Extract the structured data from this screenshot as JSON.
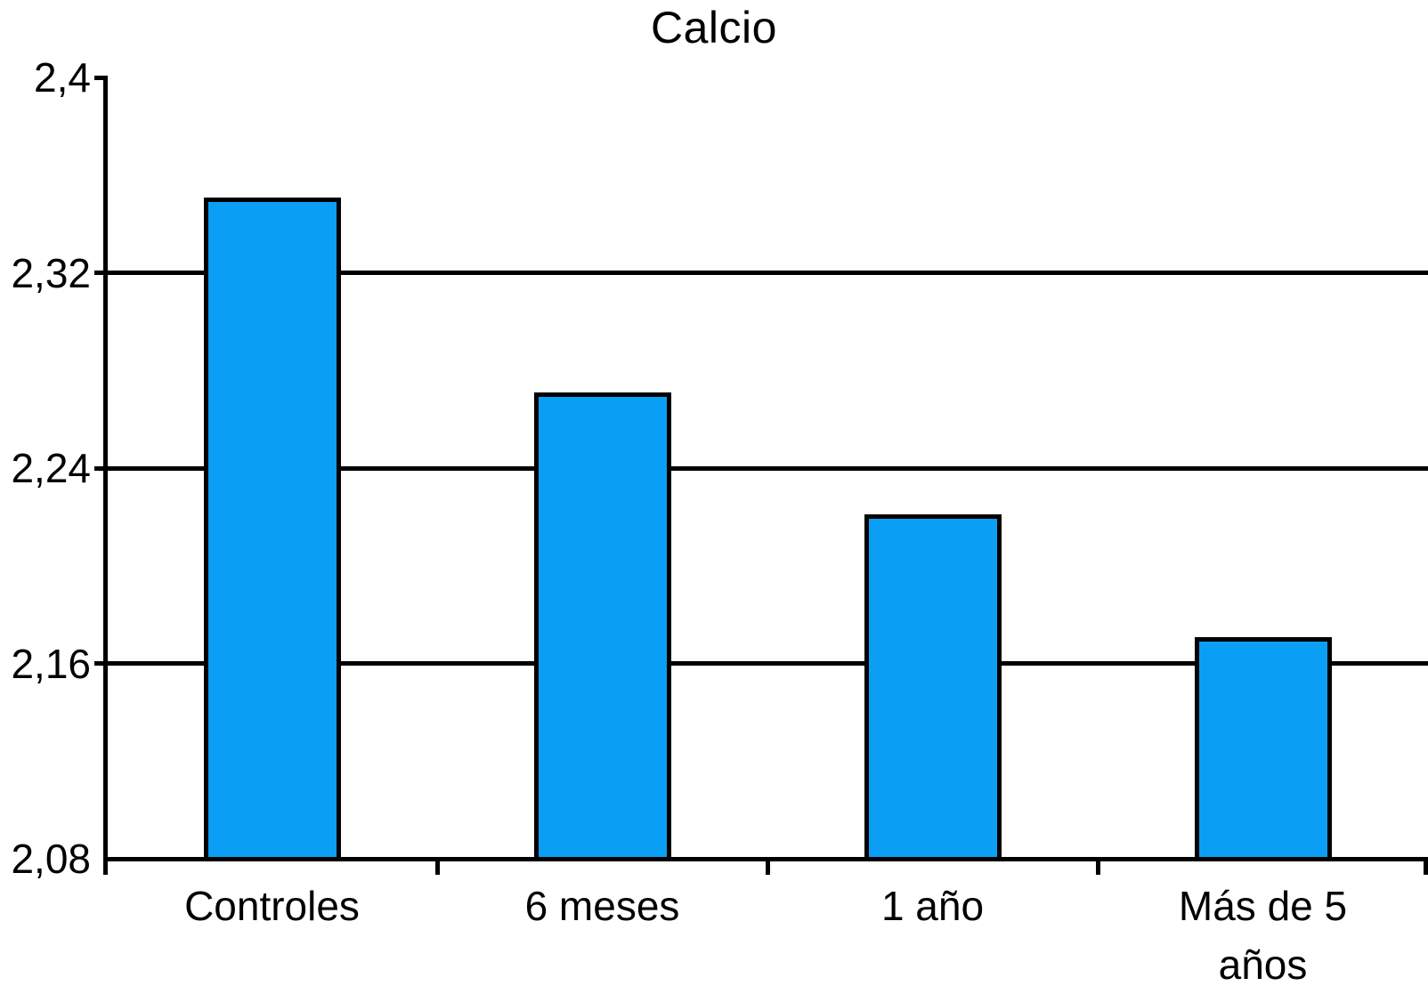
{
  "chart_data": {
    "type": "bar",
    "title": "Calcio",
    "xlabel": "",
    "ylabel": "",
    "categories": [
      "Controles",
      "6 meses",
      "1 año",
      "Más de 5 años"
    ],
    "category_label_lines": [
      [
        "Controles"
      ],
      [
        "6 meses"
      ],
      [
        "1 año"
      ],
      [
        "Más de 5",
        "años"
      ]
    ],
    "values": [
      2.35,
      2.27,
      2.22,
      2.17
    ],
    "ylim": [
      2.08,
      2.4
    ],
    "ytick_step": 0.08,
    "yticks": [
      {
        "value": 2.4,
        "label": "2,4"
      },
      {
        "value": 2.32,
        "label": "2,32"
      },
      {
        "value": 2.24,
        "label": "2,24"
      },
      {
        "value": 2.16,
        "label": "2,16"
      },
      {
        "value": 2.08,
        "label": "2,08"
      }
    ],
    "decimal_separator": ",",
    "grid": "horizontal",
    "legend": "none",
    "colors": {
      "bar_fill": "#0A9FF5",
      "bar_border": "#000000",
      "axis": "#000000",
      "grid": "#000000",
      "text": "#000000",
      "background": "#FFFFFF"
    }
  }
}
